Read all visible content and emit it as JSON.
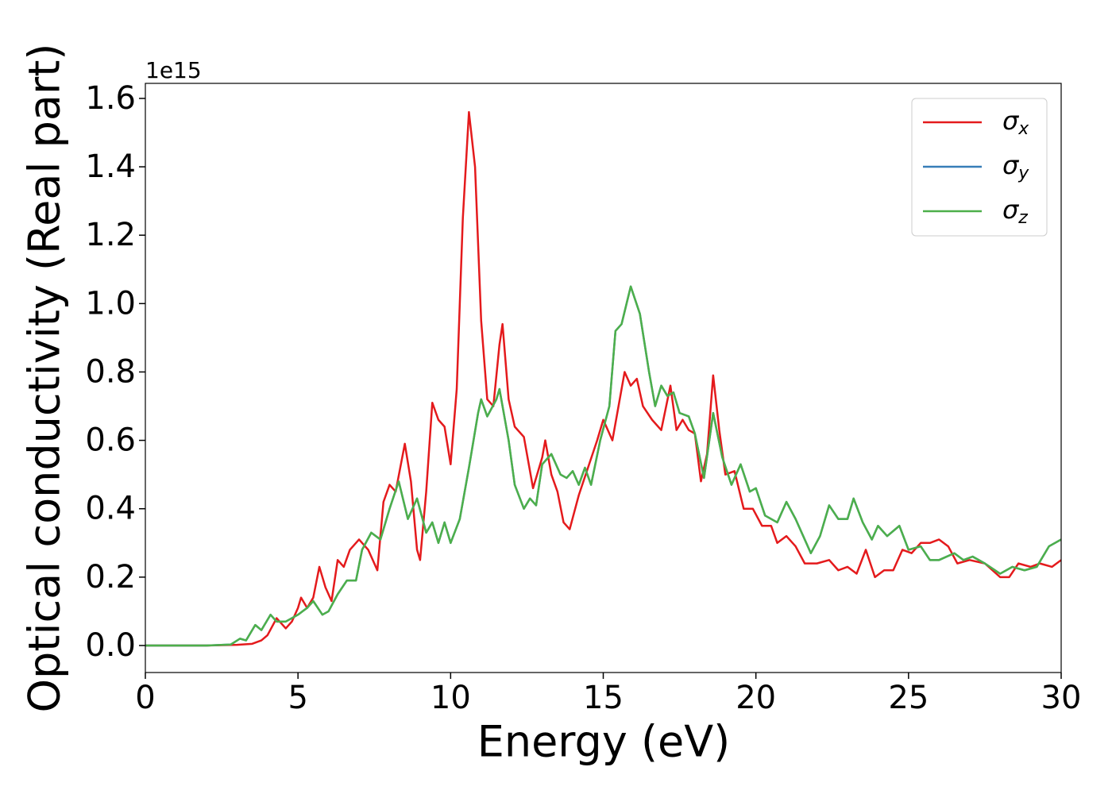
{
  "chart_data": {
    "type": "line",
    "xlabel": "Energy (eV)",
    "ylabel": "Optical conductivity (Real part)",
    "offset_label": "1e15",
    "xlim": [
      0,
      30
    ],
    "xticks": [
      0,
      5,
      10,
      15,
      20,
      25,
      30
    ],
    "ylim": [
      -0.079,
      1.644
    ],
    "yticks": [
      {
        "value": 0,
        "label": "0.0"
      },
      0.2,
      0.4,
      0.6,
      0.8,
      {
        "value": 1,
        "label": "1.0"
      },
      1.2,
      1.4,
      1.6
    ],
    "legend": "upper right",
    "series": [
      {
        "name": "σx",
        "color": "#e41a1c",
        "x": [
          0,
          1,
          2,
          3,
          3.5,
          3.8,
          4.0,
          4.3,
          4.6,
          4.8,
          5.0,
          5.1,
          5.3,
          5.5,
          5.7,
          5.9,
          6.1,
          6.3,
          6.5,
          6.7,
          7.0,
          7.3,
          7.6,
          7.8,
          8.0,
          8.2,
          8.5,
          8.7,
          8.9,
          9.0,
          9.2,
          9.4,
          9.6,
          9.8,
          10.0,
          10.2,
          10.4,
          10.6,
          10.8,
          11.0,
          11.2,
          11.4,
          11.6,
          11.7,
          11.9,
          12.1,
          12.4,
          12.7,
          13.0,
          13.1,
          13.3,
          13.5,
          13.7,
          13.9,
          14.2,
          14.5,
          14.8,
          15.0,
          15.3,
          15.5,
          15.7,
          15.9,
          16.1,
          16.3,
          16.6,
          16.9,
          17.2,
          17.4,
          17.6,
          17.8,
          18.0,
          18.2,
          18.4,
          18.6,
          18.8,
          19.0,
          19.3,
          19.6,
          19.9,
          20.2,
          20.5,
          20.7,
          21.0,
          21.3,
          21.6,
          22.0,
          22.4,
          22.7,
          23.0,
          23.3,
          23.6,
          23.9,
          24.2,
          24.5,
          24.8,
          25.1,
          25.4,
          25.7,
          26.0,
          26.3,
          26.6,
          27.0,
          27.5,
          28.0,
          28.3,
          28.6,
          29.0,
          29.3,
          29.7,
          30
        ],
        "values": [
          0,
          0,
          0,
          0.002,
          0.005,
          0.015,
          0.03,
          0.08,
          0.05,
          0.07,
          0.11,
          0.14,
          0.11,
          0.14,
          0.23,
          0.17,
          0.13,
          0.25,
          0.23,
          0.28,
          0.31,
          0.28,
          0.22,
          0.42,
          0.47,
          0.45,
          0.59,
          0.48,
          0.28,
          0.25,
          0.45,
          0.71,
          0.66,
          0.64,
          0.53,
          0.75,
          1.25,
          1.56,
          1.4,
          0.95,
          0.72,
          0.7,
          0.88,
          0.94,
          0.72,
          0.64,
          0.61,
          0.46,
          0.55,
          0.6,
          0.5,
          0.45,
          0.36,
          0.34,
          0.44,
          0.52,
          0.6,
          0.66,
          0.6,
          0.7,
          0.8,
          0.76,
          0.78,
          0.7,
          0.66,
          0.63,
          0.76,
          0.63,
          0.66,
          0.63,
          0.62,
          0.48,
          0.56,
          0.79,
          0.63,
          0.5,
          0.51,
          0.4,
          0.4,
          0.35,
          0.35,
          0.3,
          0.32,
          0.29,
          0.24,
          0.24,
          0.25,
          0.22,
          0.23,
          0.21,
          0.28,
          0.2,
          0.22,
          0.22,
          0.28,
          0.27,
          0.3,
          0.3,
          0.31,
          0.29,
          0.24,
          0.25,
          0.24,
          0.2,
          0.2,
          0.24,
          0.23,
          0.24,
          0.23,
          0.25
        ]
      },
      {
        "name": "σy",
        "color": "#377eb8",
        "x": [
          0,
          2,
          2.8,
          3.1,
          3.3,
          3.6,
          3.8,
          4.1,
          4.3,
          4.6,
          5.0,
          5.3,
          5.5,
          5.8,
          6.0,
          6.3,
          6.6,
          6.9,
          7.1,
          7.4,
          7.7,
          8.0,
          8.3,
          8.6,
          8.9,
          9.2,
          9.4,
          9.6,
          9.8,
          10.0,
          10.3,
          10.6,
          10.9,
          11.0,
          11.2,
          11.5,
          11.6,
          11.9,
          12.1,
          12.4,
          12.6,
          12.8,
          13.0,
          13.3,
          13.6,
          13.8,
          14.0,
          14.2,
          14.4,
          14.6,
          14.9,
          15.2,
          15.4,
          15.6,
          15.9,
          16.2,
          16.5,
          16.7,
          16.9,
          17.1,
          17.3,
          17.5,
          17.8,
          18.0,
          18.3,
          18.6,
          18.9,
          19.2,
          19.5,
          19.8,
          20.0,
          20.3,
          20.7,
          21.0,
          21.3,
          21.8,
          22.1,
          22.4,
          22.7,
          23.0,
          23.2,
          23.5,
          23.8,
          24.0,
          24.3,
          24.7,
          25.0,
          25.4,
          25.7,
          26.0,
          26.5,
          26.8,
          27.1,
          27.5,
          28.0,
          28.4,
          28.8,
          29.2,
          29.6,
          30
        ],
        "values": [
          0,
          0,
          0.003,
          0.02,
          0.015,
          0.06,
          0.045,
          0.09,
          0.07,
          0.07,
          0.09,
          0.11,
          0.13,
          0.09,
          0.1,
          0.15,
          0.19,
          0.19,
          0.28,
          0.33,
          0.31,
          0.4,
          0.48,
          0.37,
          0.43,
          0.33,
          0.36,
          0.3,
          0.36,
          0.3,
          0.37,
          0.52,
          0.68,
          0.72,
          0.67,
          0.72,
          0.75,
          0.6,
          0.47,
          0.4,
          0.43,
          0.41,
          0.53,
          0.56,
          0.5,
          0.49,
          0.51,
          0.47,
          0.52,
          0.47,
          0.6,
          0.7,
          0.92,
          0.94,
          1.05,
          0.97,
          0.8,
          0.7,
          0.76,
          0.73,
          0.74,
          0.68,
          0.67,
          0.62,
          0.49,
          0.68,
          0.55,
          0.47,
          0.53,
          0.45,
          0.46,
          0.38,
          0.36,
          0.42,
          0.37,
          0.27,
          0.32,
          0.41,
          0.37,
          0.37,
          0.43,
          0.36,
          0.31,
          0.35,
          0.32,
          0.35,
          0.28,
          0.29,
          0.25,
          0.25,
          0.27,
          0.25,
          0.26,
          0.24,
          0.21,
          0.23,
          0.22,
          0.23,
          0.29,
          0.31
        ]
      },
      {
        "name": "σz",
        "color": "#4daf4a",
        "x": [
          0,
          2,
          2.8,
          3.1,
          3.3,
          3.6,
          3.8,
          4.1,
          4.3,
          4.6,
          5.0,
          5.3,
          5.5,
          5.8,
          6.0,
          6.3,
          6.6,
          6.9,
          7.1,
          7.4,
          7.7,
          8.0,
          8.3,
          8.6,
          8.9,
          9.2,
          9.4,
          9.6,
          9.8,
          10.0,
          10.3,
          10.6,
          10.9,
          11.0,
          11.2,
          11.5,
          11.6,
          11.9,
          12.1,
          12.4,
          12.6,
          12.8,
          13.0,
          13.3,
          13.6,
          13.8,
          14.0,
          14.2,
          14.4,
          14.6,
          14.9,
          15.2,
          15.4,
          15.6,
          15.9,
          16.2,
          16.5,
          16.7,
          16.9,
          17.1,
          17.3,
          17.5,
          17.8,
          18.0,
          18.3,
          18.6,
          18.9,
          19.2,
          19.5,
          19.8,
          20.0,
          20.3,
          20.7,
          21.0,
          21.3,
          21.8,
          22.1,
          22.4,
          22.7,
          23.0,
          23.2,
          23.5,
          23.8,
          24.0,
          24.3,
          24.7,
          25.0,
          25.4,
          25.7,
          26.0,
          26.5,
          26.8,
          27.1,
          27.5,
          28.0,
          28.4,
          28.8,
          29.2,
          29.6,
          30
        ],
        "values": [
          0,
          0,
          0.003,
          0.02,
          0.015,
          0.06,
          0.045,
          0.09,
          0.07,
          0.07,
          0.09,
          0.11,
          0.13,
          0.09,
          0.1,
          0.15,
          0.19,
          0.19,
          0.28,
          0.33,
          0.31,
          0.4,
          0.48,
          0.37,
          0.43,
          0.33,
          0.36,
          0.3,
          0.36,
          0.3,
          0.37,
          0.52,
          0.68,
          0.72,
          0.67,
          0.72,
          0.75,
          0.6,
          0.47,
          0.4,
          0.43,
          0.41,
          0.53,
          0.56,
          0.5,
          0.49,
          0.51,
          0.47,
          0.52,
          0.47,
          0.6,
          0.7,
          0.92,
          0.94,
          1.05,
          0.97,
          0.8,
          0.7,
          0.76,
          0.73,
          0.74,
          0.68,
          0.67,
          0.62,
          0.49,
          0.68,
          0.55,
          0.47,
          0.53,
          0.45,
          0.46,
          0.38,
          0.36,
          0.42,
          0.37,
          0.27,
          0.32,
          0.41,
          0.37,
          0.37,
          0.43,
          0.36,
          0.31,
          0.35,
          0.32,
          0.35,
          0.28,
          0.29,
          0.25,
          0.25,
          0.27,
          0.25,
          0.26,
          0.24,
          0.21,
          0.23,
          0.22,
          0.23,
          0.29,
          0.31
        ]
      }
    ]
  }
}
